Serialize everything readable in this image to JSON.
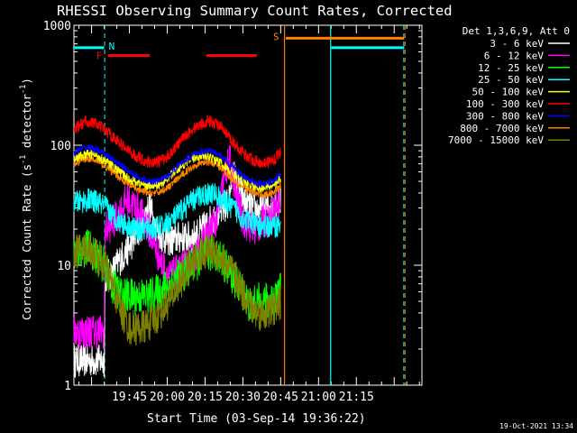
{
  "chart_data": {
    "type": "line",
    "title": "RHESSI Observing Summary Count Rates, Corrected",
    "xlabel": "Start Time (03-Sep-14 19:36:22)",
    "ylabel": "Corrected Count Rate (s⁻¹ detector⁻¹)",
    "ylabel_main": "Corrected Count Rate (s",
    "ylabel_sup1": "-1",
    "ylabel_mid": " detector",
    "ylabel_sup2": "-1",
    "ylabel_end": ")",
    "y_scale": "log",
    "ylim": [
      1,
      1000
    ],
    "xlim_minutes": [
      -22,
      116
    ],
    "y_ticks": [
      {
        "value": 1,
        "label": "1"
      },
      {
        "value": 10,
        "label": "10"
      },
      {
        "value": 100,
        "label": "100"
      },
      {
        "value": 1000,
        "label": "1000"
      }
    ],
    "x_ticks": [
      {
        "minute": 0,
        "label": "19:45"
      },
      {
        "minute": 15,
        "label": "20:00"
      },
      {
        "minute": 30,
        "label": "20:15"
      },
      {
        "minute": 45,
        "label": "20:30"
      },
      {
        "minute": 60,
        "label": "20:45"
      },
      {
        "minute": 75,
        "label": "21:00"
      },
      {
        "minute": 90,
        "label": "21:15"
      }
    ],
    "legend_header": "Det 1,3,6,9, Att 0",
    "legend_placement": "right",
    "series": [
      {
        "name": "3 - 6 keV",
        "color": "#ffffff",
        "noise": 0.28,
        "points": [
          [
            -22,
            1.6
          ],
          [
            -10,
            1.6
          ],
          [
            -9.6,
            8
          ],
          [
            -7,
            8.5
          ],
          [
            -4,
            11
          ],
          [
            0,
            14
          ],
          [
            5,
            22
          ],
          [
            8,
            32
          ],
          [
            10,
            22
          ],
          [
            13,
            17
          ],
          [
            17,
            16
          ],
          [
            20,
            17
          ],
          [
            25,
            17
          ],
          [
            28,
            19
          ],
          [
            31,
            22
          ],
          [
            35,
            27
          ],
          [
            39,
            32
          ],
          [
            41,
            60
          ],
          [
            43,
            45
          ],
          [
            46,
            33
          ],
          [
            49,
            30
          ],
          [
            52,
            28
          ],
          [
            55,
            30
          ],
          [
            58,
            33
          ],
          [
            60,
            35
          ]
        ]
      },
      {
        "name": "6 - 12 keV",
        "color": "#ff00ff",
        "noise": 0.3,
        "points": [
          [
            -22,
            2.8
          ],
          [
            -10,
            2.8
          ],
          [
            -9.6,
            20
          ],
          [
            -7,
            22
          ],
          [
            -4,
            27
          ],
          [
            -1,
            35
          ],
          [
            3,
            30
          ],
          [
            7,
            22
          ],
          [
            10,
            15
          ],
          [
            13,
            10
          ],
          [
            16,
            8
          ],
          [
            20,
            9
          ],
          [
            25,
            11
          ],
          [
            28,
            14
          ],
          [
            31,
            18
          ],
          [
            35,
            25
          ],
          [
            38,
            60
          ],
          [
            40,
            75
          ],
          [
            42,
            40
          ],
          [
            45,
            24
          ],
          [
            49,
            20
          ],
          [
            52,
            22
          ],
          [
            55,
            24
          ],
          [
            58,
            30
          ],
          [
            60,
            33
          ]
        ]
      },
      {
        "name": "12 - 25 keV",
        "color": "#00ff00",
        "noise": 0.32,
        "points": [
          [
            -22,
            13
          ],
          [
            -16,
            14
          ],
          [
            -10,
            10
          ],
          [
            -7,
            7
          ],
          [
            -3,
            5.5
          ],
          [
            2,
            5.5
          ],
          [
            8,
            5.5
          ],
          [
            12,
            6
          ],
          [
            16,
            7
          ],
          [
            20,
            8
          ],
          [
            25,
            10
          ],
          [
            30,
            12
          ],
          [
            34,
            13
          ],
          [
            37,
            11
          ],
          [
            41,
            8
          ],
          [
            45,
            6
          ],
          [
            48,
            4.5
          ],
          [
            51,
            5
          ],
          [
            55,
            5
          ],
          [
            58,
            5.5
          ],
          [
            60,
            6
          ]
        ]
      },
      {
        "name": "25 - 50 keV",
        "color": "#00ffff",
        "noise": 0.2,
        "points": [
          [
            -22,
            33
          ],
          [
            -16,
            35
          ],
          [
            -12,
            33
          ],
          [
            -9,
            30
          ],
          [
            -6,
            25
          ],
          [
            -2,
            22
          ],
          [
            3,
            20
          ],
          [
            8,
            20
          ],
          [
            13,
            21
          ],
          [
            18,
            25
          ],
          [
            23,
            32
          ],
          [
            28,
            38
          ],
          [
            33,
            40
          ],
          [
            37,
            35
          ],
          [
            41,
            30
          ],
          [
            45,
            25
          ],
          [
            49,
            22
          ],
          [
            53,
            21
          ],
          [
            57,
            21
          ],
          [
            60,
            22
          ]
        ]
      },
      {
        "name": "50 - 100 keV",
        "color": "#ffff00",
        "noise": 0.08,
        "points": [
          [
            -22,
            78
          ],
          [
            -16,
            85
          ],
          [
            -12,
            80
          ],
          [
            -8,
            70
          ],
          [
            -4,
            60
          ],
          [
            0,
            52
          ],
          [
            4,
            48
          ],
          [
            8,
            46
          ],
          [
            12,
            47
          ],
          [
            16,
            55
          ],
          [
            20,
            66
          ],
          [
            24,
            76
          ],
          [
            28,
            82
          ],
          [
            32,
            80
          ],
          [
            36,
            72
          ],
          [
            40,
            60
          ],
          [
            44,
            52
          ],
          [
            48,
            46
          ],
          [
            52,
            44
          ],
          [
            56,
            46
          ],
          [
            60,
            52
          ]
        ]
      },
      {
        "name": "100 - 300 keV",
        "color": "#ff0000",
        "noise": 0.1,
        "points": [
          [
            -22,
            135
          ],
          [
            -17,
            160
          ],
          [
            -13,
            150
          ],
          [
            -9,
            130
          ],
          [
            -5,
            110
          ],
          [
            -1,
            92
          ],
          [
            3,
            80
          ],
          [
            7,
            73
          ],
          [
            11,
            72
          ],
          [
            15,
            80
          ],
          [
            19,
            100
          ],
          [
            23,
            125
          ],
          [
            27,
            145
          ],
          [
            31,
            160
          ],
          [
            35,
            150
          ],
          [
            39,
            120
          ],
          [
            43,
            95
          ],
          [
            47,
            80
          ],
          [
            51,
            72
          ],
          [
            55,
            72
          ],
          [
            58,
            78
          ],
          [
            60,
            90
          ]
        ]
      },
      {
        "name": "300 - 800 keV",
        "color": "#0000ff",
        "noise": 0.06,
        "points": [
          [
            -22,
            88
          ],
          [
            -17,
            96
          ],
          [
            -13,
            92
          ],
          [
            -9,
            82
          ],
          [
            -5,
            72
          ],
          [
            -1,
            62
          ],
          [
            3,
            55
          ],
          [
            7,
            50
          ],
          [
            11,
            50
          ],
          [
            15,
            55
          ],
          [
            19,
            66
          ],
          [
            23,
            78
          ],
          [
            27,
            87
          ],
          [
            31,
            90
          ],
          [
            35,
            85
          ],
          [
            39,
            72
          ],
          [
            43,
            60
          ],
          [
            47,
            52
          ],
          [
            51,
            48
          ],
          [
            55,
            48
          ],
          [
            58,
            52
          ],
          [
            60,
            58
          ]
        ]
      },
      {
        "name": "800 - 7000 keV",
        "color": "#ff8000",
        "noise": 0.06,
        "points": [
          [
            -22,
            70
          ],
          [
            -17,
            78
          ],
          [
            -13,
            74
          ],
          [
            -9,
            65
          ],
          [
            -5,
            56
          ],
          [
            -1,
            48
          ],
          [
            3,
            43
          ],
          [
            7,
            40
          ],
          [
            11,
            40
          ],
          [
            15,
            44
          ],
          [
            19,
            52
          ],
          [
            23,
            62
          ],
          [
            27,
            70
          ],
          [
            31,
            73
          ],
          [
            35,
            68
          ],
          [
            39,
            57
          ],
          [
            43,
            48
          ],
          [
            47,
            42
          ],
          [
            51,
            39
          ],
          [
            55,
            39
          ],
          [
            58,
            42
          ],
          [
            60,
            46
          ]
        ]
      },
      {
        "name": "7000 - 15000 keV",
        "color": "#808000",
        "noise": 0.3,
        "points": [
          [
            -22,
            13
          ],
          [
            -16,
            14
          ],
          [
            -10,
            10
          ],
          [
            -7,
            7
          ],
          [
            -3,
            4
          ],
          [
            0,
            3
          ],
          [
            5,
            3
          ],
          [
            10,
            3.5
          ],
          [
            14,
            4.5
          ],
          [
            18,
            6
          ],
          [
            22,
            8.5
          ],
          [
            26,
            11
          ],
          [
            30,
            13
          ],
          [
            34,
            13
          ],
          [
            37,
            11
          ],
          [
            41,
            8.5
          ],
          [
            45,
            6
          ],
          [
            48,
            4.5
          ],
          [
            51,
            4
          ],
          [
            55,
            4
          ],
          [
            58,
            4.5
          ],
          [
            60,
            5
          ]
        ]
      }
    ],
    "flags": {
      "night": {
        "label": "N",
        "color": "#00ffff",
        "segments": [
          [
            -22,
            -10
          ],
          [
            80,
            109
          ]
        ],
        "value": 650,
        "vlines_solid": [
          79.8
        ],
        "vlines_dashed": [
          -9.8,
          108.8
        ]
      },
      "saa": {
        "label": "S",
        "color": "#ff8000",
        "segments": [
          [
            62,
            109
          ]
        ],
        "value": 780,
        "vlines_solid": [
          61.5
        ],
        "vlines_dashed": [
          109.3
        ]
      },
      "flare": {
        "label": "F",
        "color": "#ff0000",
        "segments": [
          [
            -8.5,
            8
          ],
          [
            30.5,
            50.5
          ]
        ],
        "value": 560
      }
    },
    "timestamp": "19-Oct-2021 13:34"
  },
  "colors": {
    "background": "#000000",
    "axes": "#ffffff"
  }
}
